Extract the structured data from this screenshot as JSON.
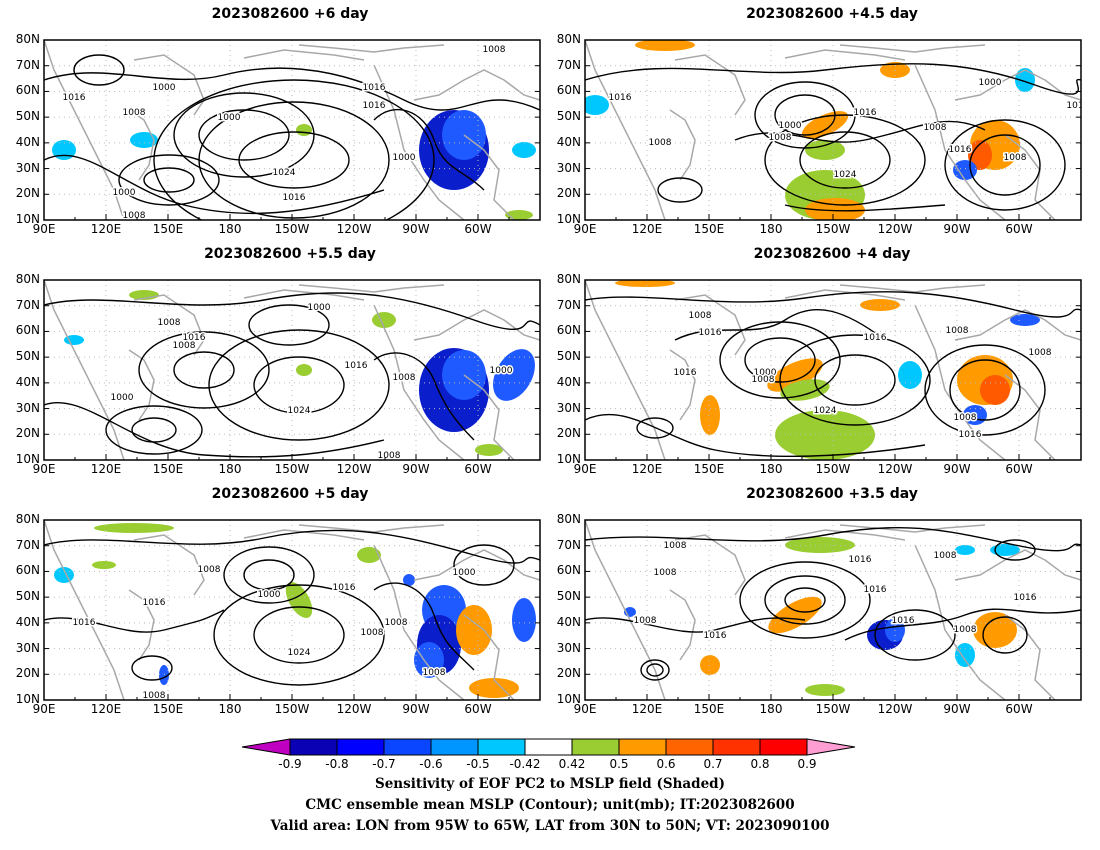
{
  "panels": [
    {
      "id": "p1",
      "title": "2023082600 +6 day",
      "contour_labels": [
        "1000",
        "1016",
        "1000",
        "1008",
        "1016",
        "1016",
        "1024",
        "1016",
        "1000",
        "1008",
        "1000",
        "1008"
      ]
    },
    {
      "id": "p2",
      "title": "2023082600 +4.5 day",
      "contour_labels": [
        "1016",
        "1008",
        "1000",
        "1008",
        "1016",
        "1024",
        "1008",
        "1016",
        "1008",
        "1000",
        "101"
      ]
    },
    {
      "id": "p3",
      "title": "2023082600 +5.5 day",
      "contour_labels": [
        "1000",
        "1008",
        "1016",
        "1008",
        "1024",
        "1016",
        "1008",
        "1000",
        "1000",
        "1008"
      ]
    },
    {
      "id": "p4",
      "title": "2023082600 +4 day",
      "contour_labels": [
        "1008",
        "1016",
        "1016",
        "1000",
        "1008",
        "1016",
        "1024",
        "1008",
        "1008",
        "1008",
        "1016"
      ]
    },
    {
      "id": "p5",
      "title": "2023082600 +5 day",
      "contour_labels": [
        "1008",
        "1016",
        "1016",
        "1000",
        "1016",
        "1024",
        "1008",
        "1008",
        "1000",
        "1008",
        "1008"
      ]
    },
    {
      "id": "p6",
      "title": "2023082600 +3.5 day",
      "contour_labels": [
        "1008",
        "1008",
        "1016",
        "1008",
        "1016",
        "1016",
        "1016",
        "1008",
        "1016",
        "1008"
      ]
    }
  ],
  "lat_ticks": [
    "80N",
    "70N",
    "60N",
    "50N",
    "40N",
    "30N",
    "20N",
    "10N"
  ],
  "lon_ticks": [
    "90E",
    "120E",
    "150E",
    "180",
    "150W",
    "120W",
    "90W",
    "60W"
  ],
  "colorbar": {
    "levels": [
      "-0.9",
      "-0.8",
      "-0.7",
      "-0.6",
      "-0.5",
      "-0.42",
      "0.42",
      "0.5",
      "0.6",
      "0.7",
      "0.8",
      "0.9"
    ],
    "colors": [
      "#0a00b4",
      "#0000ff",
      "#0a46ff",
      "#0096ff",
      "#00c8ff",
      "#ffffff",
      "#9acd32",
      "#ff9b00",
      "#ff6400",
      "#ff3200",
      "#ff0000"
    ],
    "low_end_color": "#c000c0",
    "high_end_color": "#ff9ed2"
  },
  "caption": {
    "line1": "Sensitivity of EOF PC2 to MSLP field (Shaded)",
    "line2": "CMC ensemble mean MSLP (Contour); unit(mb); IT:2023082600",
    "line3": "Valid area: LON from 95W to 65W, LAT from 30N to 50N; VT: 2023090100"
  }
}
